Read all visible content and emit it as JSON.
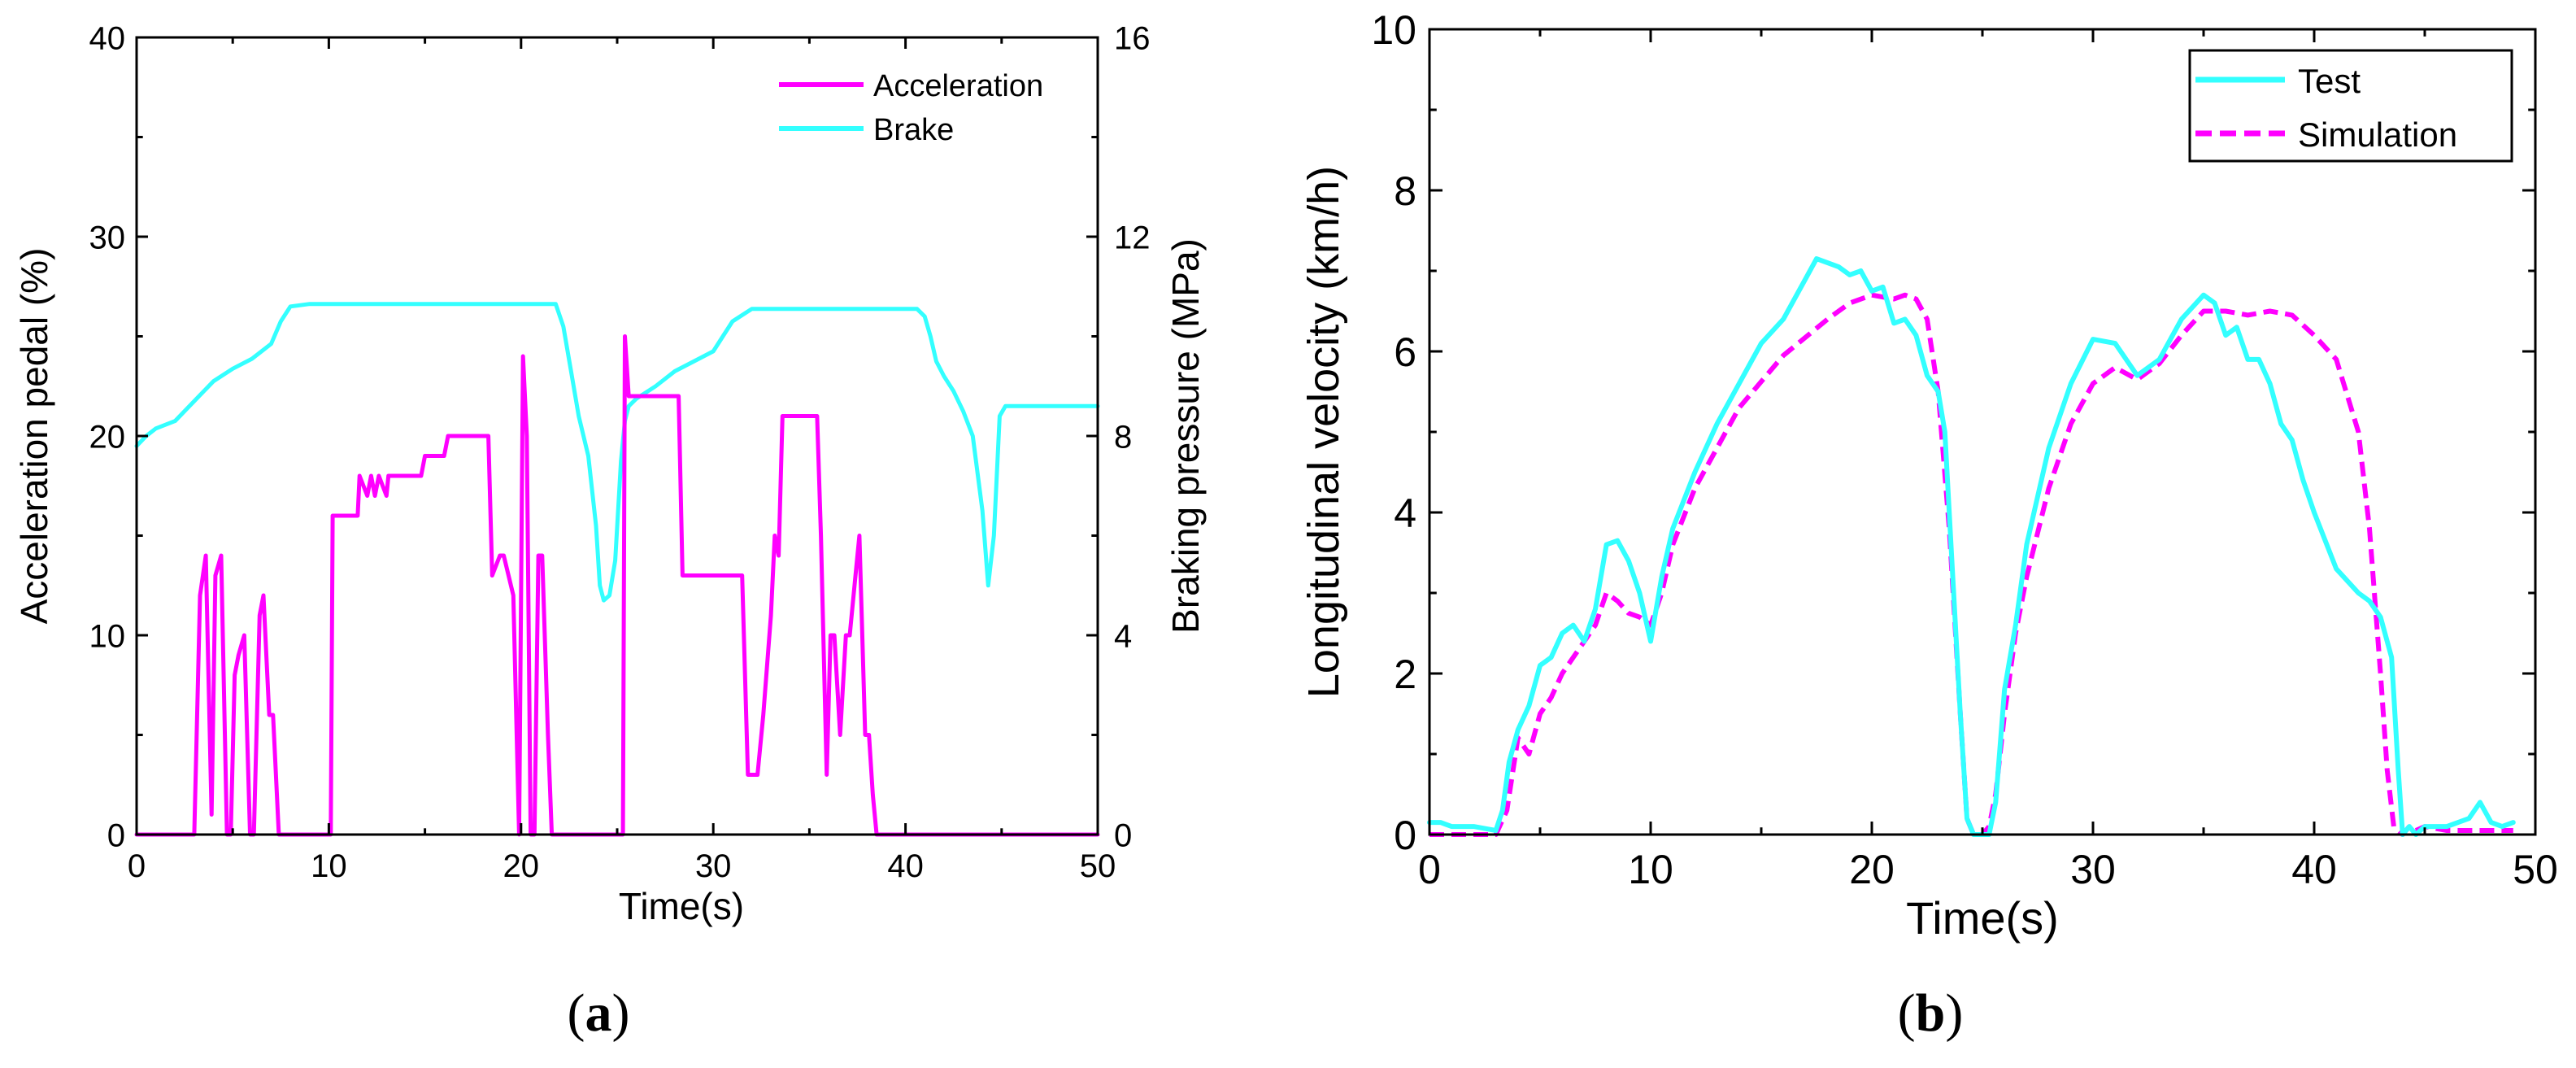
{
  "chart_data": [
    {
      "type": "line",
      "panel_label": "(a)",
      "panel_letter": "a",
      "xlabel": "Time(s)",
      "ylabel": "Acceleration pedal (%)",
      "ylabel_right": "Braking pressure (MPa)",
      "xlim": [
        0,
        50
      ],
      "ylim": [
        0,
        40
      ],
      "ylim_right": [
        0,
        16
      ],
      "xticks": [
        0,
        10,
        20,
        30,
        40,
        50
      ],
      "yticks": [
        0,
        10,
        20,
        30,
        40
      ],
      "yticks_right": [
        0,
        4,
        8,
        12,
        16
      ],
      "legend_position": "top-right",
      "colors": {
        "Acceleration": "#ff00ff",
        "Brake": "#33ffff"
      },
      "series": [
        {
          "name": "Acceleration",
          "axis": "left",
          "x": [
            0,
            3.0,
            3.3,
            3.6,
            3.9,
            4.1,
            4.4,
            4.7,
            4.9,
            5.1,
            5.3,
            5.6,
            5.9,
            6.1,
            6.4,
            6.6,
            6.9,
            7.1,
            7.4,
            7.6,
            7.8,
            8.0,
            8.1,
            10.1,
            10.2,
            11.5,
            11.6,
            12.0,
            12.2,
            12.4,
            12.6,
            13.0,
            13.1,
            14.8,
            15.0,
            16.0,
            16.2,
            17.0,
            18.3,
            18.5,
            18.9,
            19.1,
            19.6,
            19.9,
            20.1,
            20.3,
            20.5,
            20.7,
            20.9,
            21.1,
            21.4,
            21.6,
            22.0,
            22.2,
            25.3,
            25.4,
            25.6,
            25.8,
            26.0,
            28.0,
            28.2,
            28.4,
            28.6,
            29.0,
            29.2,
            29.5,
            30.0,
            31.5,
            31.8,
            32.0,
            32.3,
            32.6,
            33.0,
            33.2,
            33.4,
            33.6,
            34.0,
            35.0,
            35.4,
            35.6,
            35.9,
            36.1,
            36.3,
            36.6,
            36.9,
            37.1,
            37.4,
            37.6,
            37.9,
            38.1,
            38.3,
            38.5,
            38.8,
            39.1,
            39.3,
            50
          ],
          "y": [
            0,
            0,
            12,
            14,
            1,
            13,
            14,
            0,
            0,
            8,
            9,
            10,
            0,
            0,
            11,
            12,
            6,
            6,
            0,
            0,
            0,
            0,
            0,
            0,
            16,
            16,
            18,
            17,
            18,
            17,
            18,
            17,
            18,
            18,
            19,
            19,
            20,
            20,
            20,
            13,
            14,
            14,
            12,
            0,
            24,
            20,
            0,
            0,
            14,
            14,
            5,
            0,
            0,
            0,
            0,
            25,
            22,
            22,
            22,
            22,
            22,
            13,
            13,
            13,
            13,
            13,
            13,
            13,
            3,
            3,
            3,
            6,
            11,
            15,
            14,
            21,
            21,
            21,
            21,
            15,
            3,
            10,
            10,
            5,
            10,
            10,
            13,
            15,
            5,
            5,
            2,
            0,
            0,
            0,
            0,
            0
          ]
        },
        {
          "name": "Brake",
          "axis": "right",
          "x": [
            0,
            0.5,
            1.0,
            2.0,
            3.0,
            4.0,
            5.0,
            6.0,
            6.5,
            7.0,
            7.5,
            8.0,
            9.0,
            12.0,
            18.0,
            21.8,
            22.2,
            22.6,
            23.0,
            23.5,
            23.9,
            24.1,
            24.3,
            24.6,
            24.9,
            25.2,
            25.4,
            25.6,
            26.0,
            27.0,
            28.0,
            29.0,
            30.0,
            31.0,
            32.0,
            33.0,
            38.0,
            40.6,
            41.0,
            41.3,
            41.6,
            42.0,
            42.5,
            43.0,
            43.5,
            44.0,
            44.3,
            44.6,
            44.9,
            45.2,
            45.5,
            46.0,
            50
          ],
          "y": [
            7.8,
            8.0,
            8.15,
            8.3,
            8.7,
            9.1,
            9.35,
            9.55,
            9.7,
            9.85,
            10.3,
            10.6,
            10.65,
            10.65,
            10.65,
            10.65,
            10.2,
            9.3,
            8.4,
            7.6,
            6.2,
            5.0,
            4.7,
            4.8,
            5.5,
            7.5,
            8.3,
            8.6,
            8.75,
            9.0,
            9.3,
            9.5,
            9.7,
            10.3,
            10.55,
            10.55,
            10.55,
            10.55,
            10.4,
            10.0,
            9.5,
            9.2,
            8.9,
            8.5,
            8.0,
            6.5,
            5.0,
            6.0,
            8.4,
            8.6,
            8.6,
            8.6,
            8.6
          ]
        }
      ]
    },
    {
      "type": "line",
      "panel_label": "(b)",
      "panel_letter": "b",
      "xlabel": "Time(s)",
      "ylabel": "Longitudinal velocity (km/h)",
      "xlim": [
        0,
        50
      ],
      "ylim": [
        0,
        10
      ],
      "xticks": [
        0,
        10,
        20,
        30,
        40,
        50
      ],
      "yticks": [
        0,
        2,
        4,
        6,
        8,
        10
      ],
      "legend_position": "top-right",
      "colors": {
        "Test": "#33ffff",
        "Simulation": "#ff00ff"
      },
      "series": [
        {
          "name": "Test",
          "style": "solid",
          "x": [
            0,
            0.5,
            1,
            2,
            3,
            3.3,
            3.6,
            4.0,
            4.5,
            5.0,
            5.5,
            6.0,
            6.5,
            7.0,
            7.5,
            8.0,
            8.5,
            9.0,
            9.5,
            10.0,
            10.5,
            11.0,
            12.0,
            13.0,
            14.0,
            15.0,
            16.0,
            17.0,
            17.5,
            18.0,
            18.5,
            19.0,
            19.5,
            20.0,
            20.5,
            21.0,
            21.5,
            22.0,
            22.5,
            23.0,
            23.3,
            23.6,
            24.0,
            24.3,
            24.6,
            25.0,
            25.3,
            25.6,
            26.0,
            26.5,
            27.0,
            28.0,
            29.0,
            30.0,
            31.0,
            32.0,
            33.0,
            34.0,
            35.0,
            35.5,
            36.0,
            36.5,
            37.0,
            37.5,
            38.0,
            38.5,
            39.0,
            39.5,
            40.0,
            41.0,
            42.0,
            42.5,
            43.0,
            43.5,
            43.8,
            44.0,
            44.3,
            44.6,
            45.0,
            46.0,
            47.0,
            47.5,
            48.0,
            48.5,
            49.0
          ],
          "y": [
            0.15,
            0.15,
            0.1,
            0.1,
            0.05,
            0.3,
            0.9,
            1.3,
            1.6,
            2.1,
            2.2,
            2.5,
            2.6,
            2.4,
            2.8,
            3.6,
            3.65,
            3.4,
            3.0,
            2.4,
            3.2,
            3.8,
            4.5,
            5.1,
            5.6,
            6.1,
            6.4,
            6.9,
            7.15,
            7.1,
            7.05,
            6.95,
            7.0,
            6.75,
            6.8,
            6.35,
            6.4,
            6.2,
            5.7,
            5.5,
            5.0,
            3.5,
            1.5,
            0.2,
            0.0,
            0.0,
            0.0,
            0.4,
            1.8,
            2.6,
            3.6,
            4.8,
            5.6,
            6.15,
            6.1,
            5.7,
            5.9,
            6.4,
            6.7,
            6.6,
            6.2,
            6.3,
            5.9,
            5.9,
            5.6,
            5.1,
            4.9,
            4.4,
            4.0,
            3.3,
            3.0,
            2.9,
            2.7,
            2.2,
            0.8,
            0.0,
            0.1,
            0.0,
            0.1,
            0.1,
            0.2,
            0.4,
            0.15,
            0.1,
            0.15
          ]
        },
        {
          "name": "Simulation",
          "style": "dashed",
          "x": [
            0,
            1,
            2,
            3,
            3.5,
            4.0,
            4.5,
            5.0,
            5.5,
            6.0,
            6.5,
            7.0,
            7.5,
            8.0,
            8.5,
            9.0,
            9.5,
            10.0,
            10.5,
            11.0,
            12.0,
            14.0,
            16.0,
            18.0,
            19.0,
            20.0,
            21.0,
            21.5,
            22.0,
            22.5,
            23.0,
            23.5,
            24.0,
            24.3,
            24.6,
            25.0,
            25.3,
            25.6,
            26.0,
            26.5,
            27.0,
            28.0,
            29.0,
            30.0,
            31.0,
            32.0,
            33.0,
            34.0,
            35.0,
            36.0,
            37.0,
            38.0,
            39.0,
            40.0,
            41.0,
            42.0,
            42.5,
            43.0,
            43.3,
            43.6,
            44.0,
            44.3,
            44.6,
            45.0,
            46.0,
            47.0,
            48.0,
            49.0
          ],
          "y": [
            0.0,
            0.0,
            0.0,
            0.0,
            0.3,
            1.2,
            1.0,
            1.5,
            1.7,
            2.0,
            2.2,
            2.4,
            2.6,
            3.0,
            2.9,
            2.75,
            2.7,
            2.6,
            3.0,
            3.6,
            4.3,
            5.3,
            5.95,
            6.4,
            6.6,
            6.7,
            6.65,
            6.7,
            6.65,
            6.4,
            5.5,
            3.8,
            1.5,
            0.2,
            0.0,
            0.0,
            0.1,
            0.5,
            1.5,
            2.5,
            3.2,
            4.3,
            5.1,
            5.6,
            5.8,
            5.65,
            5.85,
            6.2,
            6.5,
            6.5,
            6.45,
            6.5,
            6.45,
            6.2,
            5.9,
            5.0,
            3.8,
            2.0,
            0.8,
            0.1,
            0.0,
            0.1,
            0.05,
            0.1,
            0.05,
            0.05,
            0.05,
            0.05
          ]
        }
      ]
    }
  ]
}
